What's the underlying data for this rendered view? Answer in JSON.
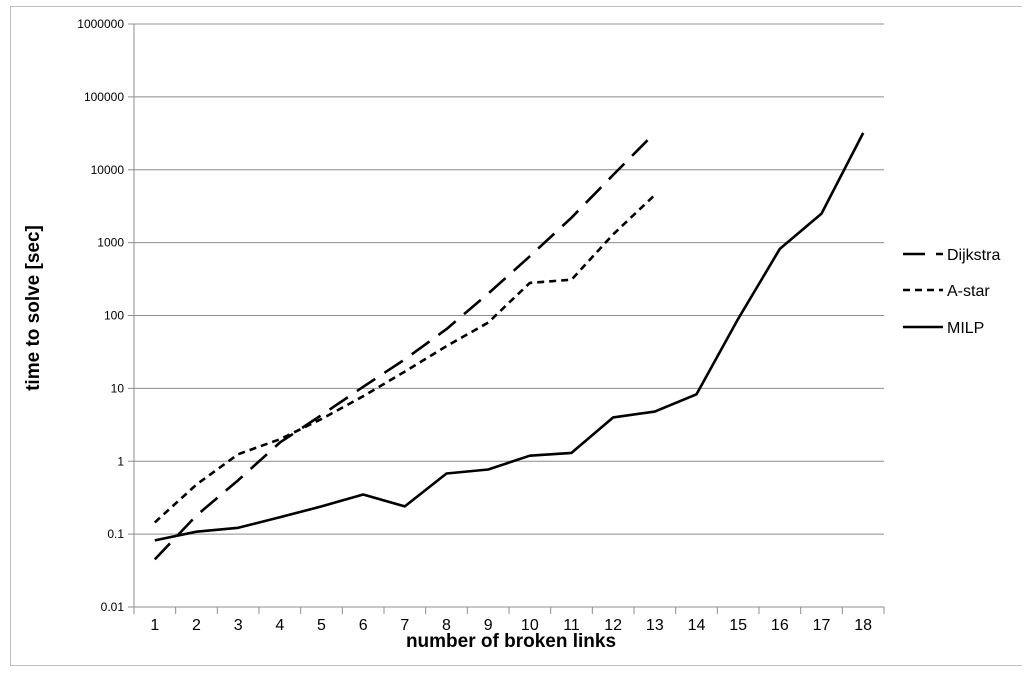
{
  "chart_data": {
    "type": "line",
    "title": "",
    "xlabel": "number of broken links",
    "ylabel": "time to solve [sec]",
    "yscale": "log",
    "ylim": [
      0.01,
      1000000
    ],
    "grid": "horizontal",
    "legend_position": "right",
    "categories": [
      "1",
      "2",
      "3",
      "4",
      "5",
      "6",
      "7",
      "8",
      "9",
      "10",
      "11",
      "12",
      "13",
      "14",
      "15",
      "16",
      "17",
      "18"
    ],
    "y_tick_labels": [
      "0.01",
      "0.1",
      "1",
      "10",
      "100",
      "1000",
      "10000",
      "100000",
      "1000000"
    ],
    "series": [
      {
        "name": "Dijkstra",
        "dash": "long-dash",
        "values": [
          0.045,
          0.18,
          0.55,
          1.8,
          4.3,
          10.5,
          25,
          65,
          200,
          650,
          2200,
          8500,
          32000,
          null,
          null,
          null,
          null,
          null
        ]
      },
      {
        "name": "A-star",
        "dash": "short-dash",
        "values": [
          0.145,
          0.48,
          1.25,
          2.0,
          3.8,
          7.8,
          17,
          38,
          80,
          280,
          310,
          1300,
          4500,
          null,
          null,
          null,
          null,
          null
        ]
      },
      {
        "name": "MILP",
        "dash": "solid",
        "values": [
          0.082,
          0.108,
          0.122,
          0.17,
          0.24,
          0.35,
          0.24,
          0.68,
          0.77,
          1.19,
          1.3,
          4.0,
          4.8,
          8.3,
          90,
          820,
          2500,
          32000
        ]
      }
    ]
  }
}
